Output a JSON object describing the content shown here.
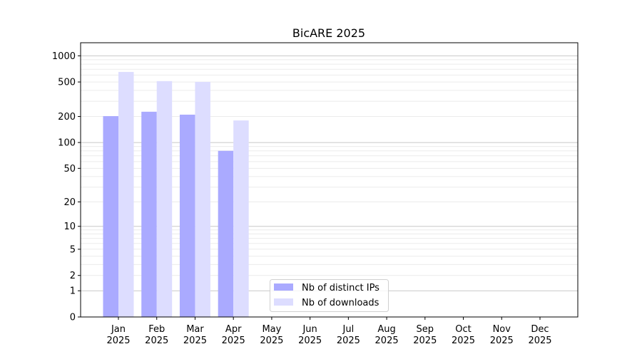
{
  "chart_data": {
    "type": "bar",
    "title": "BicARE 2025",
    "xlabel": "",
    "ylabel": "",
    "yscale": "symlog",
    "ylim": [
      0,
      1300
    ],
    "yticks": [
      0,
      1,
      2,
      5,
      10,
      20,
      50,
      100,
      200,
      500,
      1000
    ],
    "ytick_labels": [
      "0",
      "1",
      "2",
      "5",
      "10",
      "20",
      "50",
      "100",
      "200",
      "500",
      "1000"
    ],
    "grid": true,
    "legend_position": "lower-center",
    "categories": [
      [
        "Jan",
        "2025"
      ],
      [
        "Feb",
        "2025"
      ],
      [
        "Mar",
        "2025"
      ],
      [
        "Apr",
        "2025"
      ],
      [
        "May",
        "2025"
      ],
      [
        "Jun",
        "2025"
      ],
      [
        "Jul",
        "2025"
      ],
      [
        "Aug",
        "2025"
      ],
      [
        "Sep",
        "2025"
      ],
      [
        "Oct",
        "2025"
      ],
      [
        "Nov",
        "2025"
      ],
      [
        "Dec",
        "2025"
      ]
    ],
    "series": [
      {
        "name": "Nb of distinct IPs",
        "color": "#aaaaff",
        "values": [
          202,
          227,
          210,
          80,
          0,
          0,
          0,
          0,
          0,
          0,
          0,
          0
        ]
      },
      {
        "name": "Nb of downloads",
        "color": "#ddddff",
        "values": [
          652,
          511,
          501,
          180,
          0,
          0,
          0,
          0,
          0,
          0,
          0,
          0
        ]
      }
    ]
  }
}
